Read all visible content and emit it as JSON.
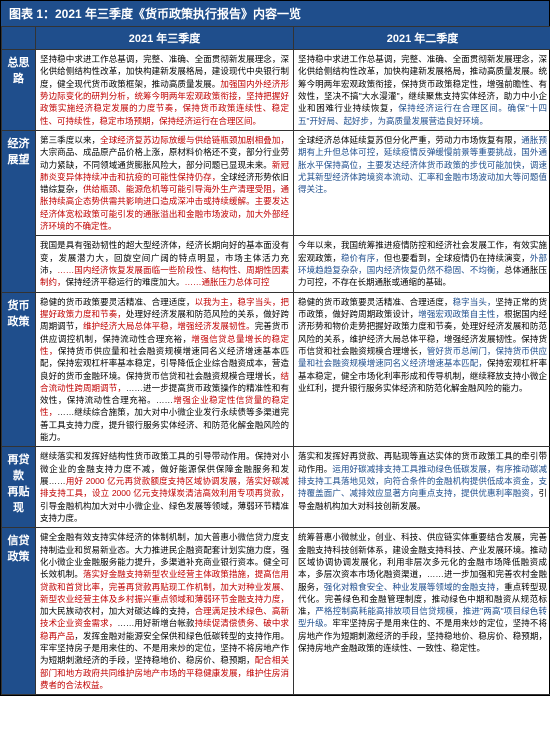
{
  "title": "图表 1：2021 年三季度《货币政策执行报告》内容一览",
  "headers": {
    "col1": "2021 年三季度",
    "col2": "2021 年二季度"
  },
  "rows": [
    {
      "label": "总思路",
      "q3": [
        {
          "t": "坚持稳中求进工作总基调，完整、准确、全面贯彻新发展理念，深化供给侧结构性改革，加快构建新发展格局，建设现代中央银行制度，健全现代货币政策框架，推动高质量发展。"
        },
        {
          "t": "加强国内外经济形势边际变化的研判分析，统筹今明两年宏观政策衔接，",
          "c": "red"
        },
        {
          "t": "坚持把握好政策实施经济稳定发展的力度节奏，",
          "c": "red"
        },
        {
          "t": "保持货币政策连续性、稳定性、可持续性，",
          "c": "red"
        },
        {
          "t": "稳定市场预期，",
          "c": "red"
        },
        {
          "t": "保持经济运行在合理区间。",
          "c": "red"
        }
      ],
      "q2": [
        {
          "t": "坚持稳中求进工作总基调，完整、准确、全面贯彻新发展理念，深化供给侧结构性改革，加快构建新发展格局，推动高质量发展。统筹今明两年宏观政策衔接，保持货币政策稳定性，增强前瞻性、有效性，坚决不搞\"大水漫灌\"，继续聚焦支持实体经济，助力中小企业和困难行业持续恢复，"
        },
        {
          "t": "保持经济运行在合理区间。",
          "c": "blue"
        },
        {
          "t": "确保\"十四五\"开好局、起好步，为高质量发展营造良好环境。",
          "c": "blue"
        }
      ]
    },
    {
      "label": "经济展望",
      "q3": [
        {
          "t": "第三季度以来，"
        },
        {
          "t": "全球经济复苏边际放缓与供给链瓶颈加剧相叠加，",
          "c": "red"
        },
        {
          "t": "大宗商品、成品原产品价格上涨，原材料价格还不变，部分行业劳动力紧缺，不同领域通货膨胀风险大，部分问题已显现未来。"
        },
        {
          "t": "新冠肺炎变异体持续冲击和抗疫的可能性保持仍存，",
          "c": "red"
        },
        {
          "t": "全球经济形势依旧错综复杂，"
        },
        {
          "t": "供给瓶颈、能源危机等可能引导海外生产清理受阻，通胀持续高企态势供需共影响进口造成深冲击或持续缓解。主要发达经济体宽松政策可能引发的通胀溢出和金融市场波动，加大外部经济环境的不确定性。",
          "c": "red"
        }
      ],
      "q2": [
        {
          "t": "全球经济总体延续复苏但分化严重，劳动力市场恢复有限，"
        },
        {
          "t": "通胀预期有上升但总体可控，延续疫情反弹缓慢前景等重要挑战，国外通胀水平保持高位，",
          "c": "blue"
        },
        {
          "t": "主要发达经济体货币政策的步伐可能加快，",
          "c": "blue"
        },
        {
          "t": "调速尤其新型经济体跨境资本流动、汇率和金融市场波动加大等问题值得关注。",
          "c": "blue"
        }
      ]
    },
    {
      "label": "",
      "q3": [
        {
          "t": "我国是具有强劲韧性的超大型经济体，经济长期向好的基本面没有变，发展潜力大，回旋空间广阔的特点明显，市场主体活力充沛，"
        },
        {
          "t": "……国内经济恢复发展面临一些阶段性、结构性、周期性因素制约，",
          "c": "red"
        },
        {
          "t": "保持经济平稳运行的难度加大。"
        },
        {
          "t": "……通胀压力总体可控",
          "c": "red"
        }
      ],
      "q2": [
        {
          "t": "今年以来，我国统筹推进疫情防控和经济社会发展工作，有效实施宏观政策，"
        },
        {
          "t": "稳价有序，",
          "c": "blue"
        },
        {
          "t": "但也要看到，全球疫情仍在持续演变，"
        },
        {
          "t": "外部环境趋趋复杂杂，国内经济恢复仍然不稳固、不均衡，",
          "c": "blue"
        },
        {
          "t": "总体通胀压力可控，不存在长期通胀或通缩的基础。"
        }
      ]
    },
    {
      "label": "货币政策",
      "q3": [
        {
          "t": "稳健的货币政策要灵活精准、合理适度，"
        },
        {
          "t": "以我为主，稳字当头，把握好政策力度和节奏，",
          "c": "red"
        },
        {
          "t": "处理好经济发展和防范风险的关系，做好跨周期调节，"
        },
        {
          "t": "维护经济大局总体平稳，增强经济发展韧性。",
          "c": "red"
        },
        {
          "t": "完善货币供应调控机制，保持流动性合理充裕，"
        },
        {
          "t": "增强信贷总量增长的稳定性，",
          "c": "red"
        },
        {
          "t": "保持货币供应量和社会融资规模增速同名义经济增速基本匹配，保持宏观杠杆率基本稳定，引导降低企业综合融资成本，营造良好的货币金融环境。保持货币信贷和社会融资规模合理增长，"
        },
        {
          "t": "结合流动性跨周期调节，",
          "c": "red"
        },
        {
          "t": "……进一步提高货币政策操作的精准性和有效性，保持流动性合理充裕。……"
        },
        {
          "t": "增强企业稳定性信贷量的稳定性，",
          "c": "red"
        },
        {
          "t": "……继续综合施策，加大对中小微企业发行永续债等多渠道完善工具支持力度，提升银行服务实体经济、和防范化解金融风险的能力。"
        }
      ],
      "q2": [
        {
          "t": "稳健的货币政策要灵活精准、合理适度，"
        },
        {
          "t": "稳字当头，",
          "c": "blue"
        },
        {
          "t": "坚持正常的货币政策，做好跨周期政策设计，"
        },
        {
          "t": "增强宏观政策自主性，",
          "c": "blue"
        },
        {
          "t": "根据国内经济形势和物价走势把握好政策力度和节奏，处理好经济发展和防范风险的关系，维护经济大局总体平稳，增强经济发展韧性。"
        },
        {
          "t": "保持货币信贷和社会融资规模合理增长，"
        },
        {
          "t": "管好货币总闸门，保持货币供应量和社会融资规模增速同名义经济增速基本匹配，",
          "c": "blue"
        },
        {
          "t": "保持宏观杠杆率基本稳定，健全市场化利率形成和传导机制，继续释放支持小微企业红利，提升银行服务实体经济和防范化解金融风险的能力。"
        }
      ]
    },
    {
      "label": "再贷款\n再贴现",
      "q3": [
        {
          "t": "继续落实和发挥好结构性货币政策工具的引导带动作用。"
        },
        {
          "t": "保持对小微企业的金融支持力度不减，做好能源保供保障金融服务和发展……"
        },
        {
          "t": "用好 2000 亿元再贷款额度支持区域协调发展，落实好碳减排支持工具，设立 2000 亿元支持煤炭清洁高效利用专项再贷款，",
          "c": "red"
        },
        {
          "t": "引导金融机构加大对中小微企业、绿色发展等领域，薄弱环节精准支持力度。"
        }
      ],
      "q2": [
        {
          "t": "落实和发挥好再贷款、再贴现等直达实体的货币政策工具的牵引带动作用。"
        },
        {
          "t": "运用好碳减排支持工具推动绿色低碳发展，有序推动碳减排支持工具落地见效，向符合条件的金融机构提供低成本资金，支持覆盖面广、减排效应显著方向重点支持，提供优惠利率融资，",
          "c": "blue"
        },
        {
          "t": "引导金融机构加大对科技创新发展。"
        }
      ]
    },
    {
      "label": "信贷政策",
      "q3": [
        {
          "t": "健全金融有效支持实体经济的体制机制，加大普惠小微信贷力度支持制造业和贸易新业态。大力推进民企融资配套计划实施力度，强化小微企业金融服务能力提升，多渠道补充商业银行资本。健全可长效机制。"
        },
        {
          "t": "落实好金融支持新型农业经营主体政策措施，提高信用贷款和首贷比率，完善再贷款再贴现工作机制，加大对种业发展、新型农业经营主体及乡村振兴重点领域和薄弱环节金融支持力度，",
          "c": "red"
        },
        {
          "t": "加大民族动农村，加大对碳达峰的支持，"
        },
        {
          "t": "合理满足技术绿色、高新技术企业资金需求，",
          "c": "red"
        },
        {
          "t": "……用好新增台帐款"
        },
        {
          "t": "持续促清偿债务、破中求稳再产品",
          "c": "red"
        },
        {
          "t": "，发挥金融对能源安全保供和绿色低碳转型的支持作用。"
        },
        {
          "t": "牢牢坚持房子是用来住的、不是用来炒的定位，坚持不将房地产作为短期刺激经济的手段，坚持稳地价、稳房价、稳预期，"
        },
        {
          "t": "配合相关部门和地方政府共同维护房地产市场的平稳健康发展，维护住房消费者的合法权益。",
          "c": "red"
        }
      ],
      "q2": [
        {
          "t": "统筹普惠小微就业，创业、科技、供应链实体重要结合发展，完善金融支持科技创新体系，建设金融支持科技、产业发展环境。"
        },
        {
          "t": "推动区域协调协调发展化，利用非层次多元化的金融市场降低融资成本，多层次资本市场化融资渠道，……进一步加强和完善农村金融服务，"
        },
        {
          "t": "强化对粮食安全、种业发展等领域的金融支持，",
          "c": "blue"
        },
        {
          "t": "重点转型现代化。"
        },
        {
          "t": "完善绿色和金融管理制度，推动绿色中期和融资从规范标准，"
        },
        {
          "t": "严格控制高耗能高排放项目信贷规模，推进\"两高\"项目绿色转型升级。",
          "c": "blue"
        },
        {
          "t": "牢牢坚持房子是用来住的、不是用来炒的定位，坚持不将房地产作为短期刺激经济的手段，坚持稳地价、稳房价、稳预期，保持房地产金融政策的连续性、一致性、稳定性。"
        }
      ]
    }
  ]
}
